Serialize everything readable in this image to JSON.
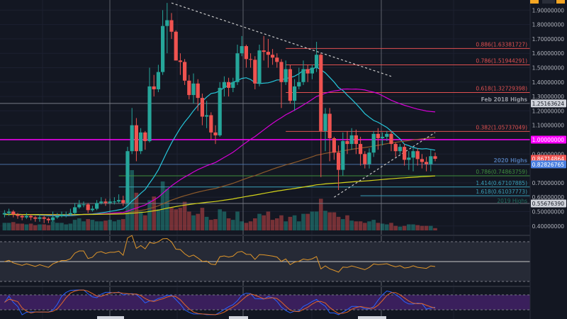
{
  "chart_data": {
    "type": "candlestick",
    "price_axis": {
      "ylim": [
        0.36,
        1.96
      ],
      "ticks": [
        "1.90000000",
        "1.80000000",
        "1.70000000",
        "1.60000000",
        "1.50000000",
        "1.40000000",
        "1.30000000",
        "1.20000000",
        "1.10000000",
        "0.90000000",
        "0.70000000",
        "0.60000000",
        "0.50000000",
        "0.40000000"
      ],
      "tick_values": [
        1.9,
        1.8,
        1.7,
        1.6,
        1.5,
        1.4,
        1.3,
        1.2,
        1.1,
        0.9,
        0.7,
        0.6,
        0.5,
        0.4
      ]
    },
    "first_open": 0.48,
    "close": [
      0.49,
      0.5,
      0.48,
      0.47,
      0.46,
      0.47,
      0.46,
      0.45,
      0.46,
      0.45,
      0.44,
      0.46,
      0.47,
      0.48,
      0.48,
      0.49,
      0.53,
      0.55,
      0.55,
      0.51,
      0.52,
      0.56,
      0.57,
      0.56,
      0.57,
      0.57,
      0.58,
      0.56,
      0.92,
      1.1,
      0.92,
      1.05,
      0.99,
      1.37,
      1.35,
      1.47,
      1.79,
      1.83,
      1.75,
      1.55,
      1.54,
      1.41,
      1.31,
      1.39,
      1.29,
      1.16,
      1.17,
      1.05,
      1.03,
      1.36,
      1.4,
      1.36,
      1.4,
      1.6,
      1.65,
      1.56,
      1.555,
      1.39,
      1.62,
      1.61,
      1.59,
      1.57,
      1.54,
      1.4,
      1.49,
      1.27,
      1.37,
      1.4,
      1.49,
      1.46,
      1.5,
      1.59,
      1.06,
      1.18,
      1.01,
      0.91,
      0.79,
      0.99,
      0.97,
      1.03,
      0.97,
      0.9,
      0.83,
      0.91,
      1.04,
      1.01,
      1.02,
      1.04,
      0.97,
      0.92,
      0.95,
      0.86,
      0.875,
      0.92,
      0.865,
      0.845,
      0.83,
      0.885,
      0.867
    ],
    "high": [
      0.51,
      0.52,
      0.51,
      0.49,
      0.48,
      0.49,
      0.48,
      0.47,
      0.48,
      0.47,
      0.46,
      0.5,
      0.49,
      0.5,
      0.5,
      0.52,
      0.56,
      0.58,
      0.57,
      0.56,
      0.54,
      0.58,
      0.6,
      0.59,
      0.59,
      0.6,
      0.62,
      0.61,
      0.95,
      1.22,
      1.15,
      1.08,
      1.06,
      1.5,
      1.45,
      1.52,
      1.9,
      1.95,
      1.88,
      1.76,
      1.6,
      1.56,
      1.45,
      1.46,
      1.42,
      1.32,
      1.27,
      1.19,
      1.1,
      1.4,
      1.44,
      1.43,
      1.43,
      1.66,
      1.72,
      1.66,
      1.6,
      1.58,
      1.66,
      1.72,
      1.7,
      1.63,
      1.6,
      1.56,
      1.55,
      1.52,
      1.42,
      1.5,
      1.55,
      1.52,
      1.52,
      1.68,
      1.6,
      1.22,
      1.22,
      1.02,
      0.96,
      1.05,
      1.06,
      1.08,
      1.07,
      1.02,
      0.92,
      0.94,
      1.06,
      1.08,
      1.05,
      1.06,
      1.06,
      0.98,
      0.97,
      0.97,
      0.92,
      0.94,
      0.94,
      0.9,
      0.88,
      0.93,
      0.91
    ],
    "low": [
      0.46,
      0.47,
      0.46,
      0.45,
      0.44,
      0.45,
      0.44,
      0.43,
      0.43,
      0.42,
      0.42,
      0.43,
      0.45,
      0.46,
      0.46,
      0.47,
      0.48,
      0.52,
      0.53,
      0.49,
      0.5,
      0.51,
      0.55,
      0.54,
      0.55,
      0.55,
      0.56,
      0.54,
      0.55,
      0.9,
      0.85,
      0.9,
      0.93,
      0.98,
      1.3,
      1.33,
      1.45,
      1.6,
      1.7,
      1.55,
      1.45,
      1.38,
      1.28,
      1.25,
      1.2,
      1.1,
      1.08,
      1.0,
      0.97,
      1.02,
      1.3,
      1.3,
      1.33,
      1.38,
      1.58,
      1.5,
      1.5,
      1.35,
      1.37,
      1.55,
      1.5,
      1.52,
      1.5,
      1.22,
      1.38,
      1.25,
      1.2,
      1.35,
      1.38,
      1.4,
      1.42,
      1.47,
      0.74,
      0.92,
      0.85,
      0.86,
      0.65,
      0.75,
      0.9,
      0.93,
      0.9,
      0.82,
      0.8,
      0.8,
      0.88,
      0.93,
      0.96,
      0.99,
      0.92,
      0.88,
      0.9,
      0.82,
      0.79,
      0.78,
      0.82,
      0.8,
      0.78,
      0.78,
      0.85
    ],
    "volume_relative": [
      10,
      10,
      11,
      9,
      9,
      8,
      9,
      7,
      8,
      8,
      7,
      12,
      10,
      10,
      8,
      9,
      14,
      16,
      12,
      15,
      14,
      12,
      12,
      13,
      14,
      12,
      14,
      15,
      55,
      80,
      50,
      25,
      20,
      40,
      45,
      28,
      65,
      55,
      30,
      28,
      30,
      38,
      25,
      20,
      22,
      30,
      18,
      14,
      15,
      28,
      25,
      16,
      14,
      25,
      12,
      10,
      12,
      16,
      22,
      20,
      25,
      14,
      16,
      20,
      12,
      18,
      20,
      12,
      22,
      22,
      25,
      25,
      42,
      26,
      24,
      24,
      18,
      15,
      20,
      13,
      12,
      12,
      10,
      12,
      14,
      10,
      9,
      8,
      10,
      6,
      5,
      6,
      8,
      8,
      7,
      6,
      6,
      6,
      3
    ],
    "moving_averages": [
      {
        "period": 20,
        "color": "#26c6da"
      },
      {
        "period": 50,
        "color": "#d500d5"
      },
      {
        "period": 100,
        "color": "#8d5a2b"
      },
      {
        "period": 200,
        "color": "#d4d41a"
      }
    ],
    "levels": [
      {
        "price": 1.63381727,
        "label": "0.886(1.63381727)",
        "color": "#e05050",
        "from_candle": 64
      },
      {
        "price": 1.51944291,
        "label": "0.786(1.51944291)",
        "color": "#e05050",
        "from_candle": 64
      },
      {
        "price": 1.32729398,
        "label": "0.618(1.32729398)",
        "color": "#e05050",
        "from_candle": 64
      },
      {
        "price": 1.25163624,
        "label": "Feb 2018 Highs",
        "color": "#787b86",
        "from_candle": 0
      },
      {
        "price": 1.05737049,
        "label": "0.382(1.05737049)",
        "color": "#e05050",
        "from_candle": 64
      },
      {
        "price": 1.0,
        "label": "",
        "color": "#ff00ff",
        "from_candle": 0
      },
      {
        "price": 0.82826765,
        "label": "2020 Highs",
        "color": "#4a6fa5",
        "from_candle": 0
      },
      {
        "price": 0.74863759,
        "label": "0.786(0.74863759)",
        "color": "#3f8f3f",
        "from_candle": 26
      },
      {
        "price": 0.67107885,
        "label": "1.414(0.67107885)",
        "color": "#3aa0b8",
        "from_candle": 26
      },
      {
        "price": 0.61037773,
        "label": "1.618(0.61037773)",
        "color": "#3aa0b8",
        "from_candle": 81
      },
      {
        "price": 0.5567639,
        "label": "2019 Highs",
        "color": "#787b86",
        "from_candle": 0
      }
    ],
    "price_tags": [
      {
        "price": 1.25163624,
        "text": "1.25163624",
        "bg": "#d1d4dc",
        "fg": "#131722"
      },
      {
        "price": 1.0,
        "text": "1.00000000",
        "bg": "#ff00ff",
        "fg": "#ffffff"
      },
      {
        "price": 0.86714864,
        "text": "0.86714864",
        "bg": "#ef5350",
        "fg": "#ffffff"
      },
      {
        "price": 0.82826765,
        "text": "0.82826765",
        "bg": "#4a7fe0",
        "fg": "#ffffff"
      },
      {
        "price": 0.5567639,
        "text": "0.55676390",
        "bg": "#d1d4dc",
        "fg": "#131722"
      }
    ],
    "trendlines": [
      {
        "from": {
          "candle": 38,
          "price": 1.95
        },
        "to": {
          "candle": 88,
          "price": 1.44
        }
      },
      {
        "from": {
          "candle": 75,
          "price": 0.6
        },
        "to": {
          "candle": 98,
          "price": 1.05
        }
      }
    ],
    "rsi": {
      "period": 14,
      "ylim": [
        0,
        100
      ],
      "ticks": [
        "80.00",
        "60.00",
        "40.00",
        "20.00"
      ],
      "tick_values": [
        80,
        60,
        40,
        20
      ],
      "mid_tag": "50.00",
      "band": [
        20,
        80
      ],
      "color": "#e0962a"
    },
    "stoch_rsi": {
      "ticks": [
        "100.00",
        "50.00",
        "0.00"
      ],
      "tick_values": [
        100,
        50,
        0
      ],
      "band": [
        20,
        80
      ],
      "k_color": "#2962ff",
      "d_color": "#e0662a",
      "band_color": "#3a1f5c"
    },
    "colors": {
      "up": "#26a69a",
      "down": "#ef5350",
      "background": "#131722",
      "grid": "#1f2433"
    }
  }
}
